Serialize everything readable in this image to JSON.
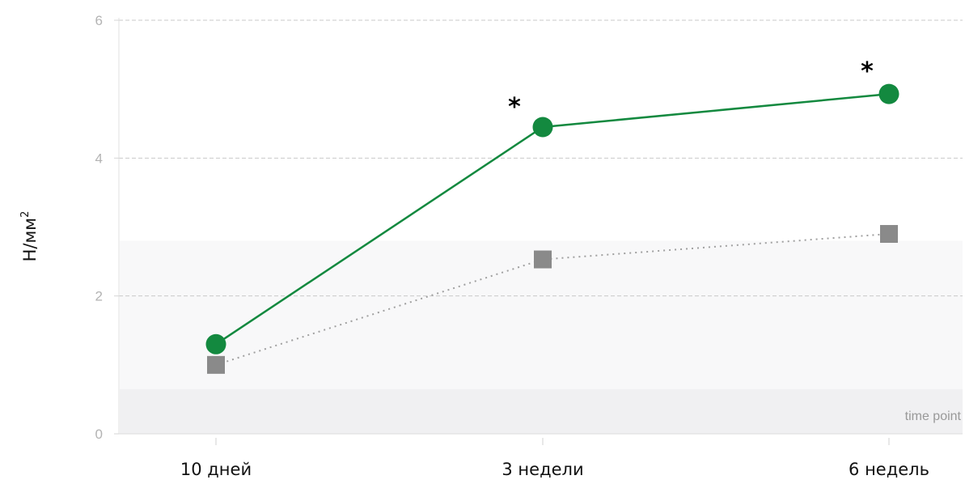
{
  "chart_data": {
    "type": "line",
    "title": "",
    "xlabel": "",
    "ylabel": "Н/мм",
    "ylabel_superscript": "2",
    "ylim": [
      0,
      6
    ],
    "yticks": [
      "0",
      "2",
      "4",
      "6"
    ],
    "categories": [
      "10 дней",
      "3 недели",
      "6 недель"
    ],
    "grid": true,
    "legend": "none",
    "series": [
      {
        "values": [
          1.3,
          4.45,
          4.93
        ],
        "color": "#13893f",
        "marker": "circle",
        "line_style": "solid"
      },
      {
        "values": [
          1.0,
          2.53,
          2.9
        ],
        "color": "#8a8a8a",
        "marker": "square",
        "line_style": "dotted"
      }
    ],
    "significance": [
      {
        "category_index": 1,
        "text": "*"
      },
      {
        "category_index": 2,
        "text": "*"
      }
    ],
    "bands": [
      {
        "from": 0,
        "to": 0.65,
        "color": "#f0f0f2"
      },
      {
        "from": 0.65,
        "to": 2.8,
        "color": "#f8f8f9"
      }
    ],
    "annotation": "time point"
  }
}
